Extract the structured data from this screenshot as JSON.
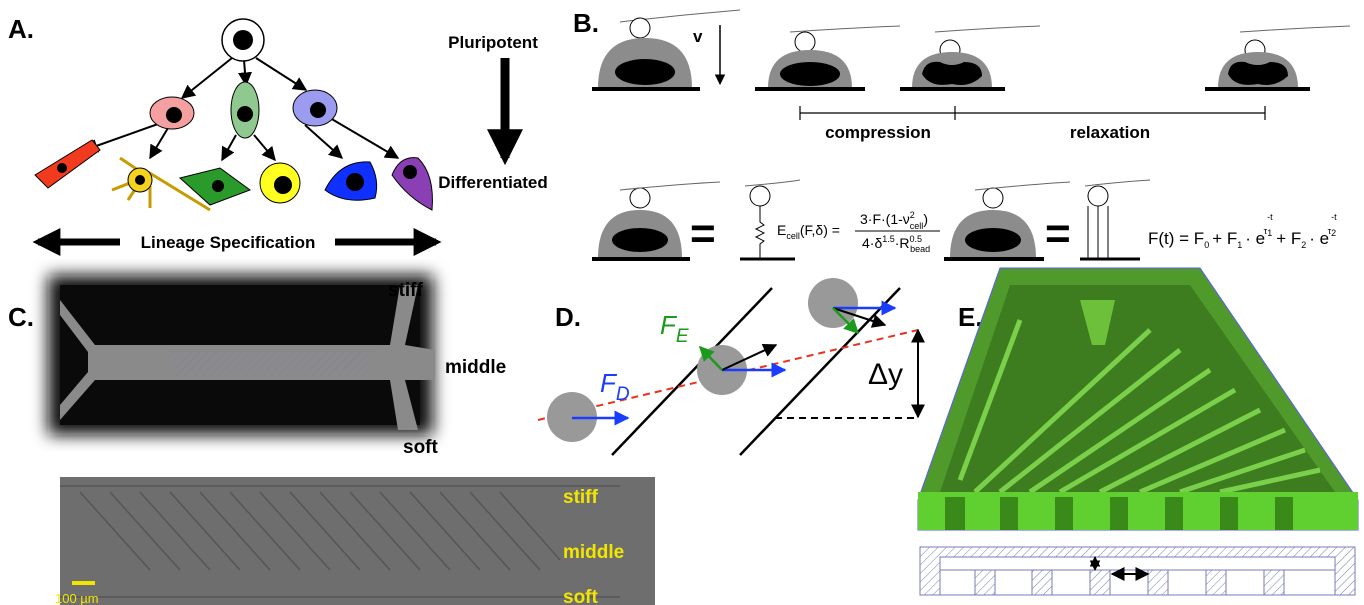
{
  "panels": {
    "a": {
      "label": "A.",
      "top": "Pluripotent",
      "bottom": "Differentiated",
      "axis": "Lineage Specification"
    },
    "b": {
      "label": "B.",
      "velocity": "v",
      "phase1": "compression",
      "phase2": "relaxation",
      "equals": "=",
      "elastic": {
        "lhs": "E",
        "lhs_sub": "cell",
        "args": "(F,δ) =",
        "num": "3·F·(1-ν",
        "num_sup": "2",
        "num_sub": "cell",
        "num_end": ")",
        "den": "4·δ",
        "den_sup": "1.5",
        "den_mid": "·R",
        "den_sup2": "0.5",
        "den_sub2": "bead"
      },
      "relax": {
        "lhs": "F(t) = F",
        "s0": "0",
        "p1": "+ F",
        "s1": "1",
        "e1": "· e",
        "x1_num": "-t",
        "x1_den": "τ",
        "x1_sub": "1",
        "p2": "+ F",
        "s2": "2",
        "e2": "· e",
        "x2_num": "-t",
        "x2_den": "τ",
        "x2_sub": "2"
      }
    },
    "c": {
      "label": "C.",
      "top_labels": [
        "stiff",
        "middle",
        "soft"
      ],
      "bottom_labels": [
        "stiff",
        "middle",
        "soft"
      ],
      "scale_bar": "100 µm"
    },
    "d": {
      "label": "D.",
      "fe": {
        "base": "F",
        "sub": "E"
      },
      "fd": {
        "base": "F",
        "sub": "D"
      },
      "shift": "Δy"
    },
    "e": {
      "label": "E."
    }
  }
}
